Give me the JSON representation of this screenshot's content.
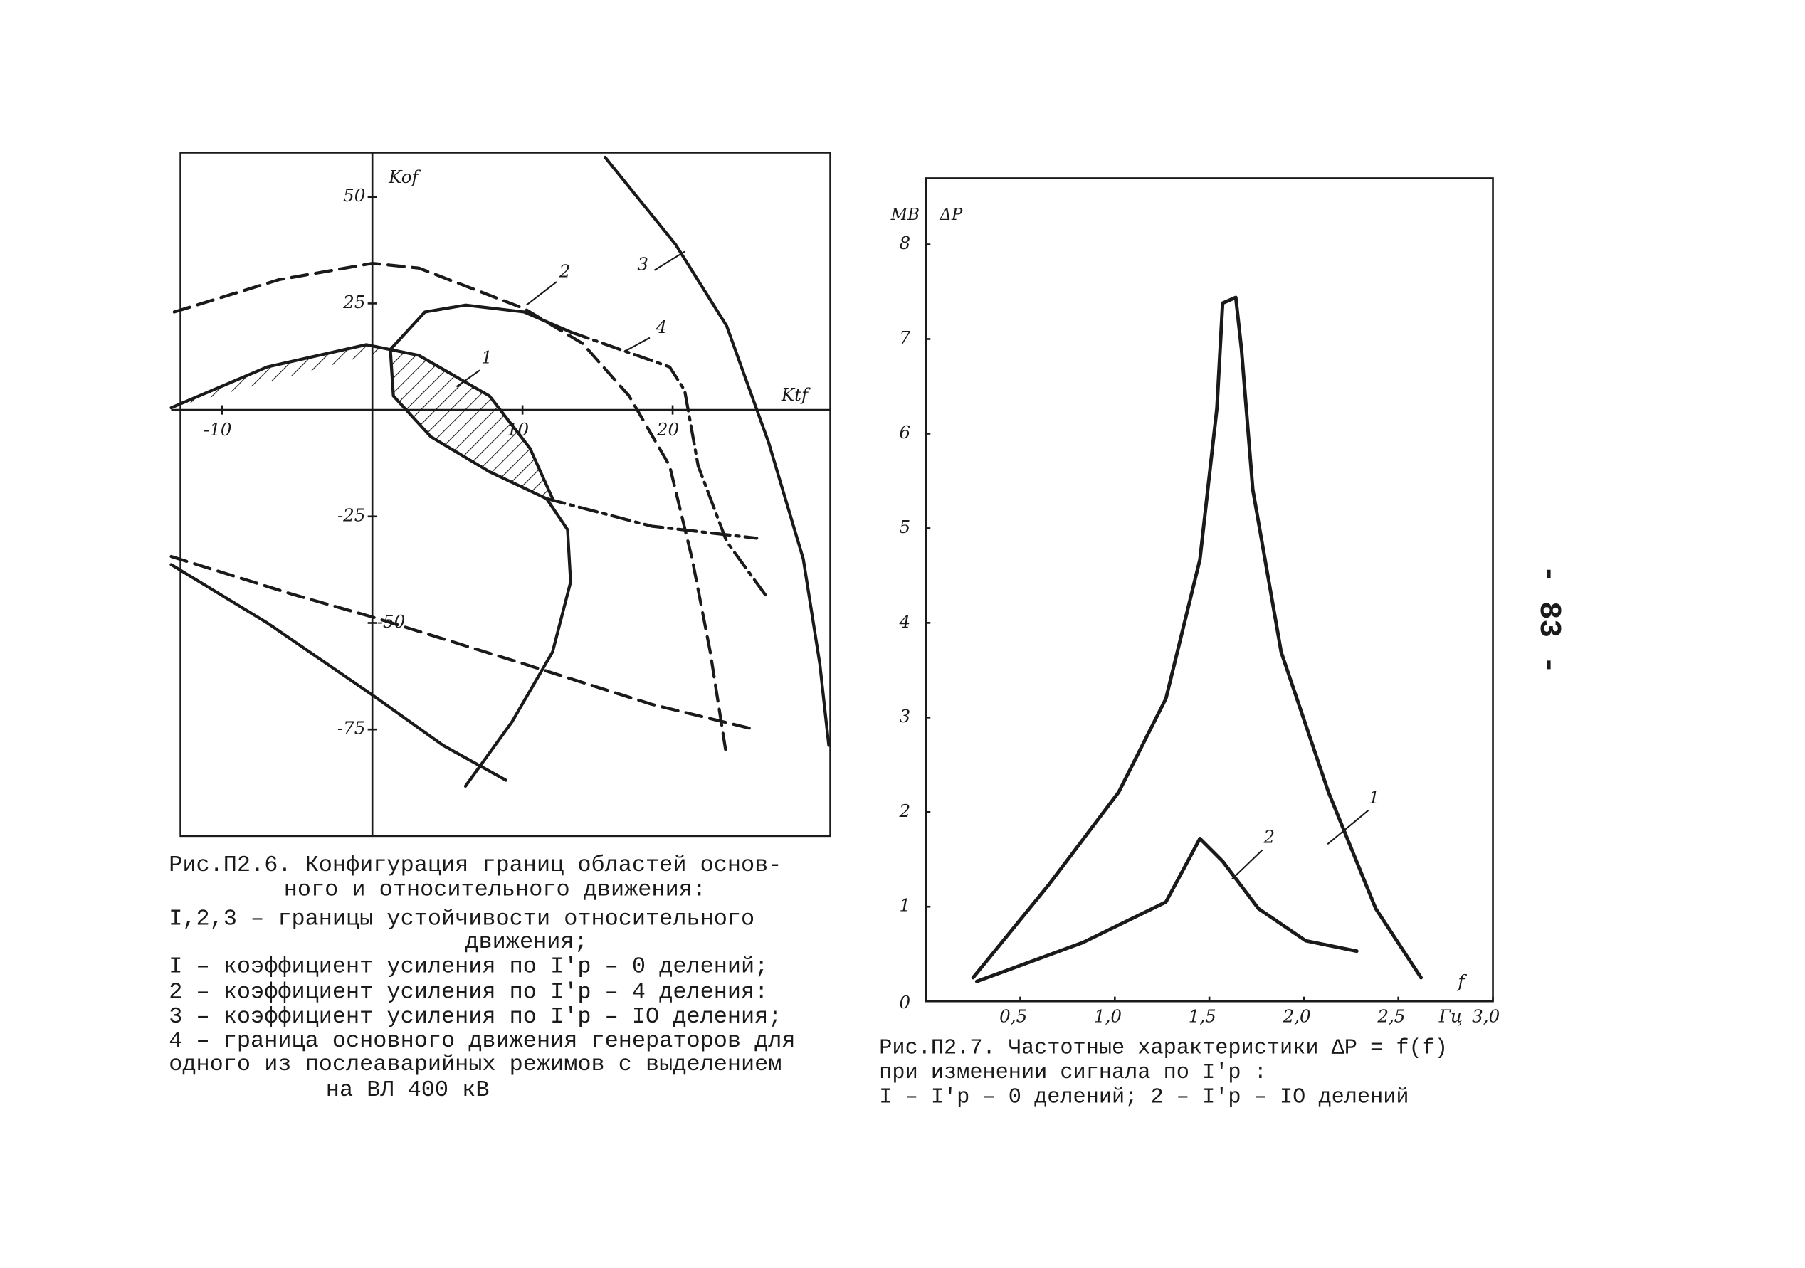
{
  "chart_data": [
    {
      "type": "line",
      "x_label": "Ktf",
      "y_label": "Kof",
      "xlim": [
        -13.4,
        30.5
      ],
      "ylim": [
        -100,
        60.4
      ],
      "xticks": [
        -10,
        10,
        20
      ],
      "yticks": [
        50,
        25,
        -25,
        -50,
        -75
      ],
      "series": [
        {
          "color": "#1a1a1a",
          "style": "solid",
          "x": [
            -13.4,
            -7.0,
            -0.4,
            3.1,
            7.8,
            10.5,
            12.0
          ],
          "values": [
            0.5,
            10.1,
            15.3,
            12.8,
            3.3,
            -9.0,
            -20.8
          ]
        },
        {
          "color": "#1a1a1a",
          "style": "solid",
          "x": [
            6.2,
            9.3,
            12.0,
            13.2,
            13.0,
            11.6,
            7.8,
            3.9,
            1.4,
            1.2,
            3.5,
            6.2,
            10.1,
            13.2
          ],
          "values": [
            -88.3,
            -73.2,
            -56.8,
            -40.4,
            -28.1,
            -20.8,
            -14.5,
            -6.3,
            3.3,
            14.2,
            23.0,
            24.6,
            23.0,
            18.3
          ]
        },
        {
          "color": "#1a1a1a",
          "style": "dashdot",
          "x": [
            13.2,
            19.8,
            20.8,
            21.7,
            23.6,
            26.4
          ],
          "values": [
            18.3,
            10.1,
            4.6,
            -13.1,
            -30.9,
            -44.5
          ]
        },
        {
          "color": "#1a1a1a",
          "style": "dashdot",
          "x": [
            11.6,
            18.6,
            25.6
          ],
          "values": [
            -20.8,
            -27.3,
            -30.1
          ]
        },
        {
          "color": "#1a1a1a",
          "style": "solid",
          "x": [
            15.5,
            20.2,
            23.6,
            26.4,
            28.7,
            29.8,
            30.4
          ],
          "values": [
            59.3,
            38.8,
            19.7,
            -7.7,
            -35.0,
            -59.6,
            -78.7
          ]
        },
        {
          "color": "#1a1a1a",
          "style": "dashed",
          "x": [
            -13.2,
            -6.2,
            0,
            3.1,
            10.1,
            14.0,
            17.1,
            19.8,
            21.3,
            22.5,
            23.6
          ],
          "values": [
            23.0,
            30.6,
            34.4,
            33.3,
            23.8,
            15.6,
            3.3,
            -13.1,
            -35.0,
            -56.8,
            -81.4
          ]
        },
        {
          "color": "#1a1a1a",
          "style": "dashed",
          "x": [
            -13.4,
            -5.4,
            0,
            10.1,
            18.6,
            25.6
          ],
          "values": [
            -34.4,
            -43.2,
            -48.6,
            -59.6,
            -69.1,
            -75.1
          ]
        },
        {
          "color": "#1a1a1a",
          "style": "solid",
          "x": [
            -13.4,
            -7.0,
            0,
            4.7,
            8.9
          ],
          "values": [
            -36.3,
            -50.0,
            -66.9,
            -78.7,
            -86.9
          ]
        }
      ],
      "curve_labels": [
        "1",
        "2",
        "3",
        "4"
      ],
      "caption": [
        "Рис.П2.6. Конфигурация границ областей основ-",
        "ного и относительного движения:",
        "I,2,3 – границы устойчивости относительного",
        "движения;",
        "I – коэффициент усиления по I′p – 0 делений;",
        "2 – коэффициент усиления по I′p – 4 деления:",
        "3 – коэффициент усиления по I′p – IO деления;",
        "4 – граница основного движения генераторов для",
        "одного из послеаварийных режимов с выделением",
        "на ВЛ 400 кВ"
      ]
    },
    {
      "type": "line",
      "x_label": "f",
      "x_unit": "Гц",
      "y_label": "ΔP",
      "y_unit": "МВ",
      "xlim": [
        0,
        3.0
      ],
      "ylim": [
        0,
        8.7
      ],
      "xticks": [
        {
          "value": 0.5,
          "label": "0,5"
        },
        {
          "value": 1.0,
          "label": "1,0"
        },
        {
          "value": 1.5,
          "label": "1,5"
        },
        {
          "value": 2.0,
          "label": "2,0"
        },
        {
          "value": 2.5,
          "label": "2,5"
        },
        {
          "value": 3.0,
          "label": "3,0"
        }
      ],
      "yticks": [
        0,
        1,
        2,
        3,
        4,
        5,
        6,
        7,
        8
      ],
      "series": [
        {
          "color": "#1a1a1a",
          "style": "solid",
          "x": [
            0.25,
            0.65,
            1.02,
            1.27,
            1.45,
            1.54,
            1.57,
            1.64,
            1.67,
            1.73,
            1.88,
            2.13,
            2.38,
            2.62
          ],
          "values": [
            0.25,
            1.23,
            2.21,
            3.2,
            4.67,
            6.27,
            7.38,
            7.44,
            6.89,
            5.41,
            3.69,
            2.21,
            0.98,
            0.25
          ]
        },
        {
          "color": "#1a1a1a",
          "style": "solid",
          "x": [
            0.27,
            0.83,
            1.27,
            1.45,
            1.57,
            1.76,
            2.01,
            2.28
          ],
          "values": [
            0.21,
            0.62,
            1.05,
            1.72,
            1.48,
            0.98,
            0.64,
            0.53
          ]
        }
      ],
      "curve_labels": [
        "1",
        "2"
      ],
      "caption": [
        "Рис.П2.7. Частотные характеристики ΔP = f(f)",
        "при изменении сигнала по I′p :",
        "I – I′p – 0 делений; 2 – I′p – IO делений"
      ]
    }
  ],
  "page_number": "- 83 -"
}
